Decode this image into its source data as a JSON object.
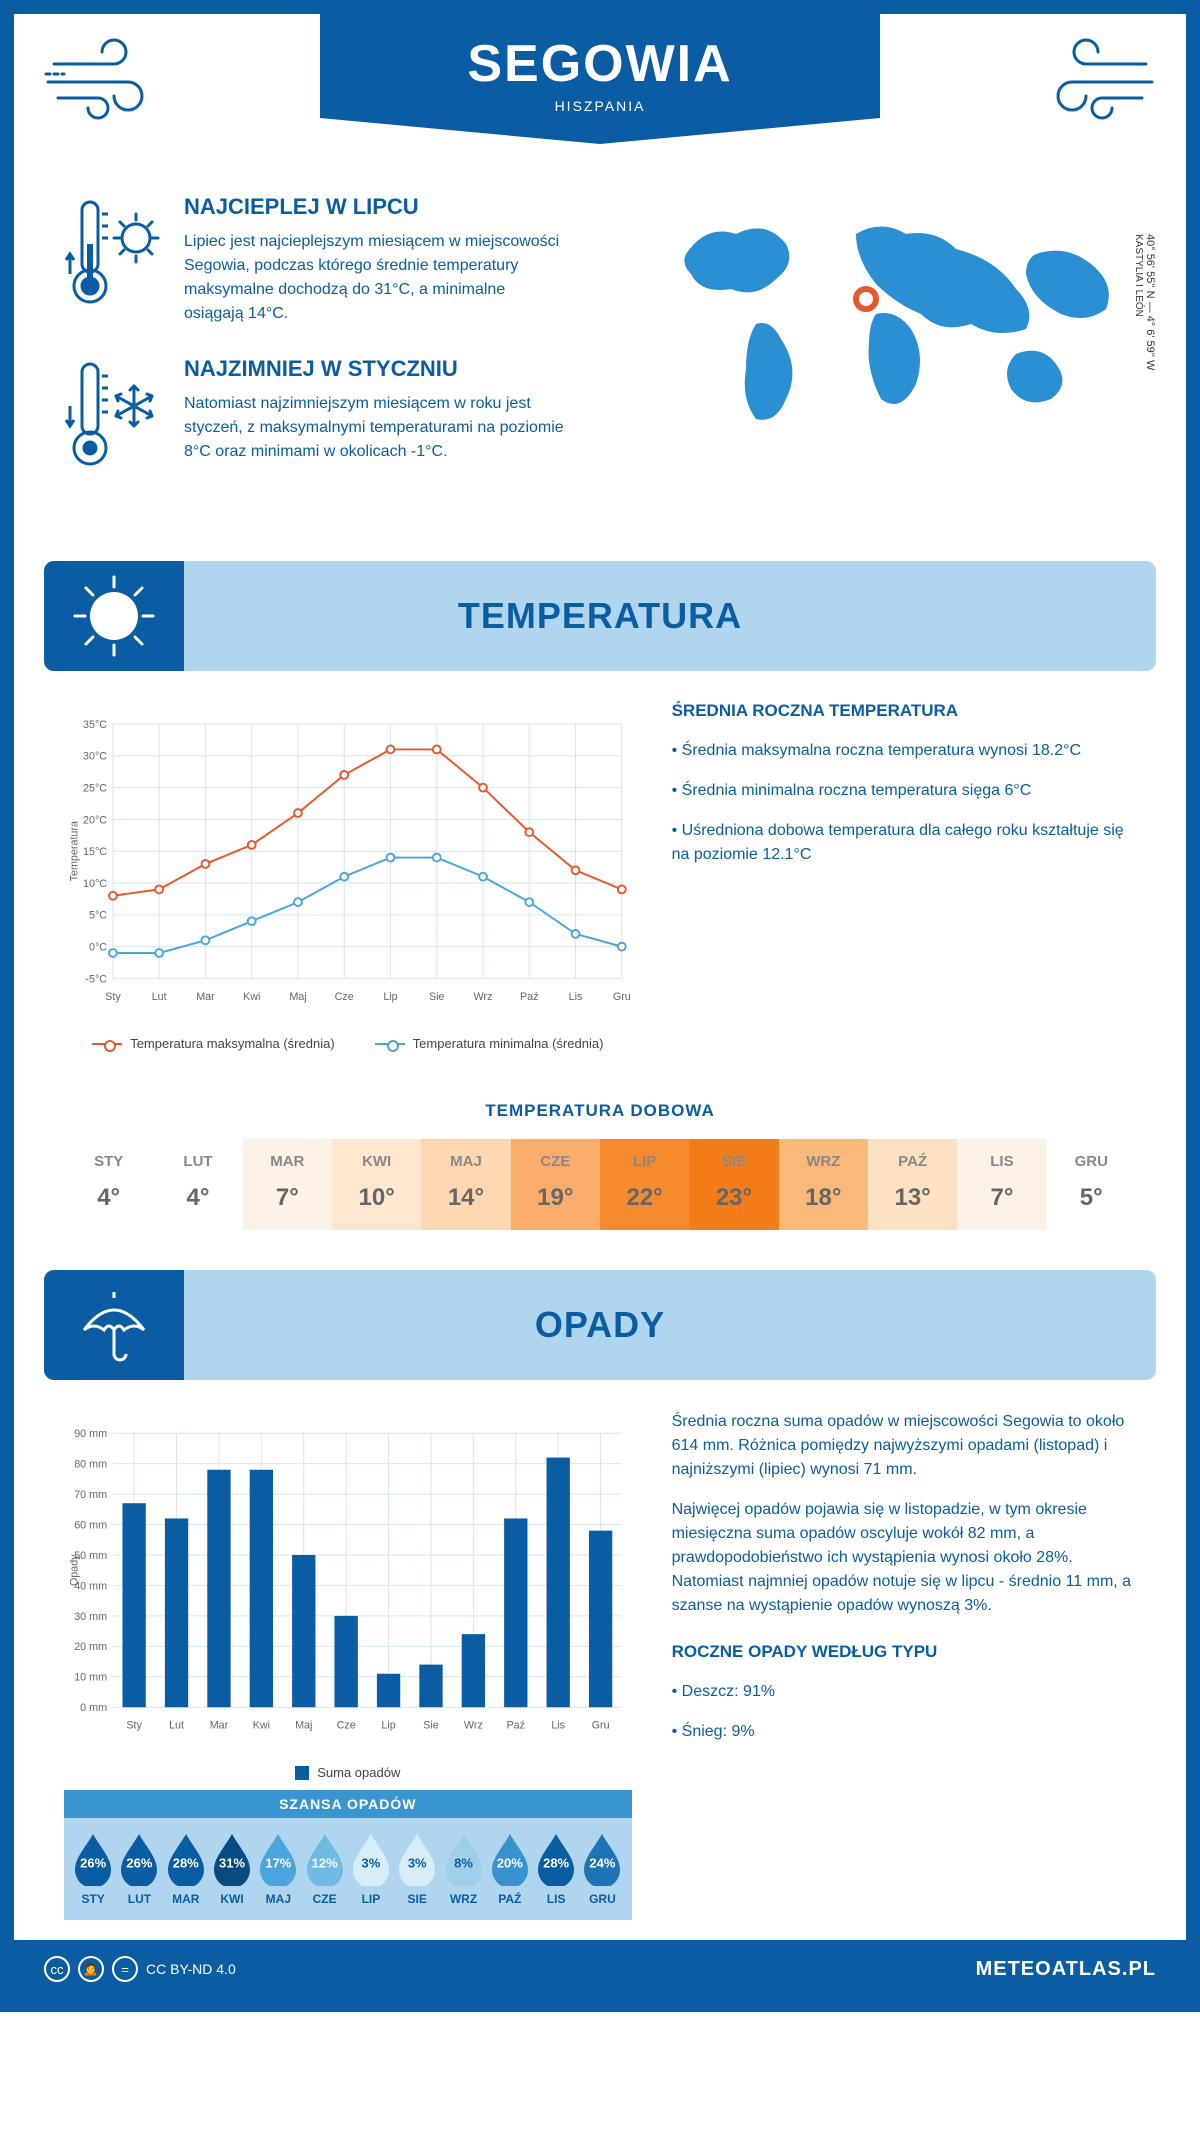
{
  "header": {
    "title": "SEGOWIA",
    "subtitle": "HISZPANIA"
  },
  "coords": "40° 56' 55'' N — 4° 6' 59'' W",
  "region": "KASTYLIA I LEÓN",
  "facts": {
    "hot": {
      "title": "NAJCIEPLEJ W LIPCU",
      "text": "Lipiec jest najcieplejszym miesiącem w miejscowości Segowia, podczas którego średnie temperatury maksymalne dochodzą do 31°C, a minimalne osiągają 14°C."
    },
    "cold": {
      "title": "NAJZIMNIEJ W STYCZNIU",
      "text": "Natomiast najzimniejszym miesiącem w roku jest styczeń, z maksymalnymi temperaturami na poziomie 8°C oraz minimami w okolicach -1°C."
    }
  },
  "sections": {
    "temp": "TEMPERATURA",
    "precip": "OPADY"
  },
  "temp_chart": {
    "type": "line",
    "months": [
      "Sty",
      "Lut",
      "Mar",
      "Kwi",
      "Maj",
      "Cze",
      "Lip",
      "Sie",
      "Wrz",
      "Paź",
      "Lis",
      "Gru"
    ],
    "ylabel": "Temperatura",
    "ylim": [
      -5,
      35
    ],
    "ytick_step": 5,
    "ytick_suffix": "°C",
    "grid_color": "#d5e6f2",
    "series": [
      {
        "name": "Temperatura maksymalna (średnia)",
        "color": "#e8582e",
        "values": [
          8,
          9,
          13,
          16,
          21,
          27,
          31,
          31,
          25,
          18,
          12,
          9
        ]
      },
      {
        "name": "Temperatura minimalna (średnia)",
        "color": "#4aa5de",
        "values": [
          -1,
          -1,
          1,
          4,
          7,
          11,
          14,
          14,
          11,
          7,
          2,
          0
        ]
      }
    ]
  },
  "temp_side": {
    "title": "ŚREDNIA ROCZNA TEMPERATURA",
    "bullets": [
      "• Średnia maksymalna roczna temperatura wynosi 18.2°C",
      "• Średnia minimalna roczna temperatura sięga 6°C",
      "• Uśredniona dobowa temperatura dla całego roku kształtuje się na poziomie 12.1°C"
    ]
  },
  "daily": {
    "title": "TEMPERATURA DOBOWA",
    "months": [
      "STY",
      "LUT",
      "MAR",
      "KWI",
      "MAJ",
      "CZE",
      "LIP",
      "SIE",
      "WRZ",
      "PAŹ",
      "LIS",
      "GRU"
    ],
    "values": [
      4,
      4,
      7,
      10,
      14,
      19,
      22,
      23,
      18,
      13,
      7,
      5
    ],
    "colors": [
      "#ffffff",
      "#ffffff",
      "#fdf2e6",
      "#fde7cf",
      "#fcd7b0",
      "#faad6a",
      "#f68a2e",
      "#f27b1a",
      "#fab978",
      "#fde1c3",
      "#fdf2e6",
      "#ffffff"
    ]
  },
  "precip_chart": {
    "type": "bar",
    "months": [
      "Sty",
      "Lut",
      "Mar",
      "Kwi",
      "Maj",
      "Cze",
      "Lip",
      "Sie",
      "Wrz",
      "Paź",
      "Lis",
      "Gru"
    ],
    "ylabel": "Opady",
    "ylim": [
      0,
      90
    ],
    "ytick_step": 10,
    "ytick_suffix": " mm",
    "grid_color": "#d5e6f2",
    "bar_color": "#0a5ca3",
    "values": [
      67,
      62,
      78,
      78,
      50,
      30,
      11,
      14,
      24,
      62,
      82,
      58
    ],
    "legend": "Suma opadów"
  },
  "precip_side": {
    "para1": "Średnia roczna suma opadów w miejscowości Segowia to około 614 mm. Różnica pomiędzy najwyższymi opadami (listopad) i najniższymi (lipiec) wynosi 71 mm.",
    "para2": "Najwięcej opadów pojawia się w listopadzie, w tym okresie miesięczna suma opadów oscyluje wokół 82 mm, a prawdopodobieństwo ich wystąpienia wynosi około 28%. Natomiast najmniej opadów notuje się w lipcu - średnio 11 mm, a szanse na wystąpienie opadów wynoszą 3%.",
    "type_title": "ROCZNE OPADY WEDŁUG TYPU",
    "type_bullets": [
      "• Deszcz: 91%",
      "• Śnieg: 9%"
    ]
  },
  "chance": {
    "title": "SZANSA OPADÓW",
    "months": [
      "STY",
      "LUT",
      "MAR",
      "KWI",
      "MAJ",
      "CZE",
      "LIP",
      "SIE",
      "WRZ",
      "PAŹ",
      "LIS",
      "GRU"
    ],
    "values": [
      26,
      26,
      28,
      31,
      17,
      12,
      3,
      3,
      8,
      20,
      28,
      24
    ],
    "colors": [
      "#0a5ca3",
      "#0a5ca3",
      "#0a5ca3",
      "#084a82",
      "#4aa5de",
      "#6fb9e3",
      "#d8ecf7",
      "#d8ecf7",
      "#9ed0eb",
      "#3892cd",
      "#0a5ca3",
      "#1e73b5"
    ]
  },
  "footer": {
    "license": "CC BY-ND 4.0",
    "site": "METEOATLAS.PL"
  }
}
